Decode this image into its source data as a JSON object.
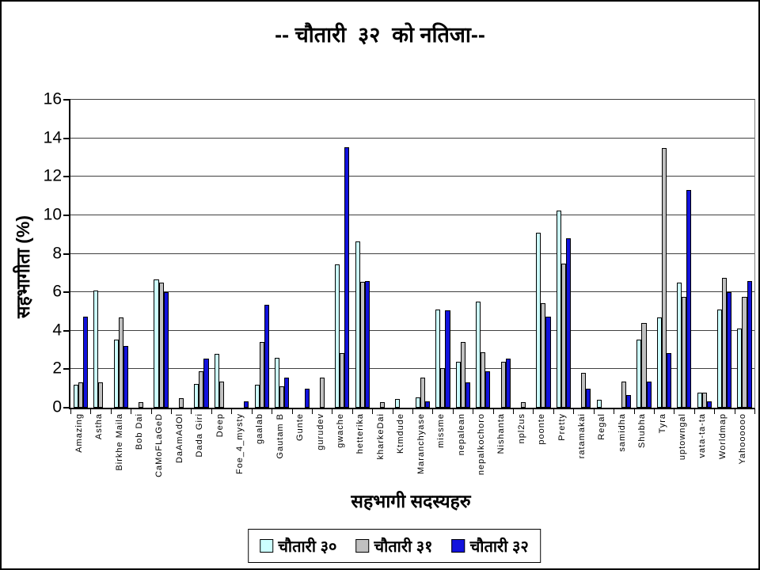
{
  "title": "-- चौतारी  ३२  को नतिजा--",
  "chart_data": {
    "type": "bar",
    "title": "-- चौतारी  ३२  को नतिजा--",
    "xlabel": "सहभागी सदस्यहरु",
    "ylabel": "सहभागीता  (%)",
    "ylim": [
      0,
      16
    ],
    "yticks": [
      0,
      2,
      4,
      6,
      8,
      10,
      12,
      14,
      16
    ],
    "grid": true,
    "legend_position": "bottom",
    "categories": [
      "Amazing",
      "Astha",
      "Birkhe Maila",
      "Bob Dai",
      "CaMoFLaGeD",
      "DaAmAdOl",
      "Dada Giri",
      "Deep",
      "Foe_4_mysty",
      "gaalab",
      "Gautam B",
      "Gunte",
      "gurudev",
      "gwache",
      "hetterika",
      "kharkeDai",
      "Ktmdude",
      "Maranchyase",
      "missme",
      "nepalean",
      "nepalkochoro",
      "Nishanta",
      "npl2us",
      "poonte",
      "Pretty",
      "ratamakai",
      "Regal",
      "samidha",
      "Shubha",
      "Tyra",
      "uptowngal",
      "vata-ta-ta",
      "Worldmap",
      "Yahoooooo"
    ],
    "series": [
      {
        "name": "चौतारी ३०",
        "color": "#ccffff",
        "values": [
          1.2,
          6.1,
          3.55,
          0,
          6.65,
          0,
          1.25,
          2.8,
          0,
          1.2,
          2.6,
          0,
          0,
          7.45,
          8.65,
          0,
          0.45,
          0.55,
          5.1,
          2.4,
          5.5,
          0,
          0,
          9.1,
          10.25,
          0,
          0.4,
          0,
          3.55,
          4.7,
          6.5,
          0.8,
          5.1,
          4.1
        ]
      },
      {
        "name": "चौतारी ३१",
        "color": "#c0c0c0",
        "values": [
          1.3,
          1.3,
          4.7,
          0.3,
          6.5,
          0.5,
          1.9,
          1.35,
          0,
          3.4,
          1.1,
          0,
          1.55,
          2.85,
          6.55,
          0.3,
          0,
          1.55,
          2.05,
          3.4,
          2.9,
          2.4,
          0.3,
          5.45,
          7.5,
          1.8,
          0,
          1.35,
          4.4,
          13.5,
          5.75,
          0.8,
          6.75,
          5.75
        ]
      },
      {
        "name": "चौतारी ३२",
        "color": "#1212dd",
        "values": [
          4.75,
          0,
          3.2,
          0,
          6.0,
          0,
          2.55,
          0,
          0.35,
          5.35,
          1.55,
          1.0,
          0,
          13.55,
          6.6,
          0,
          0,
          0.35,
          5.05,
          1.3,
          1.9,
          2.55,
          0,
          4.75,
          8.8,
          1.0,
          0,
          0.65,
          1.35,
          2.85,
          11.3,
          0.35,
          6.0,
          6.6
        ]
      }
    ]
  }
}
